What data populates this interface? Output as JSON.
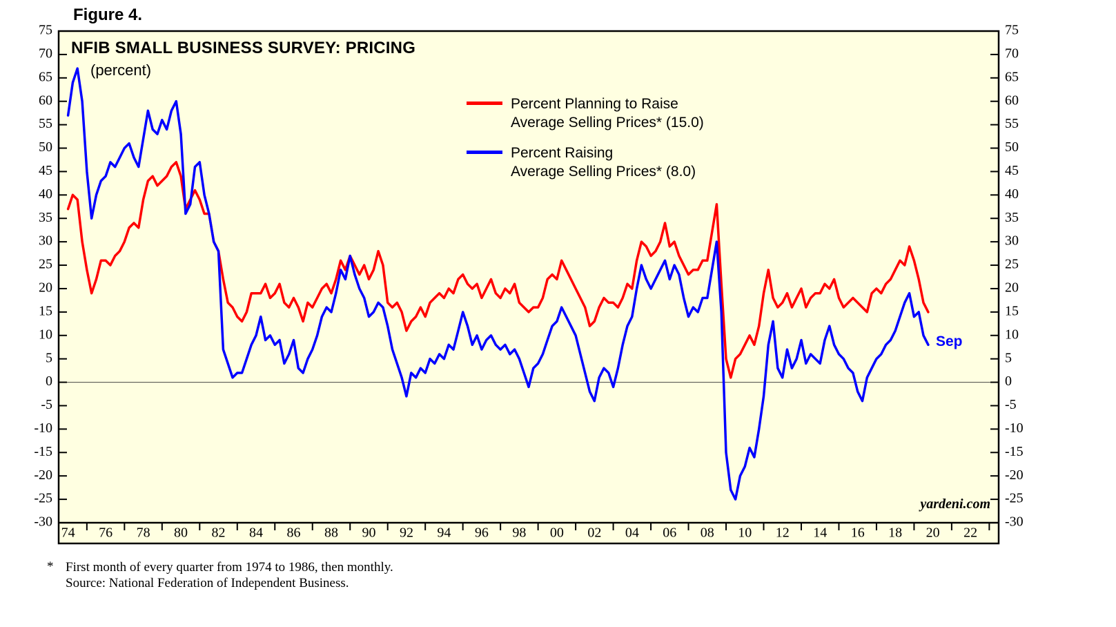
{
  "figure_label": "Figure 4.",
  "footnote": {
    "marker": "*",
    "line1": "First month of every quarter from 1974 to 1986, then monthly.",
    "line2": "Source: National Federation of Independent Business."
  },
  "chart_data": {
    "type": "line",
    "title": "NFIB SMALL BUSINESS SURVEY: PRICING",
    "subtitle": "(percent)",
    "watermark": "yardeni.com",
    "colors": {
      "background": "#ffffe1",
      "axis": "#000000",
      "zero_line": "#444444"
    },
    "x_domain": [
      1973.5,
      2023.5
    ],
    "y_domain": [
      -30,
      75
    ],
    "y_ticks": [
      75,
      70,
      65,
      60,
      55,
      50,
      45,
      40,
      35,
      30,
      25,
      20,
      15,
      10,
      5,
      0,
      -5,
      -10,
      -15,
      -20,
      -25,
      -30
    ],
    "x_tick_years": [
      1974,
      1976,
      1978,
      1980,
      1982,
      1984,
      1986,
      1988,
      1990,
      1992,
      1994,
      1996,
      1998,
      2000,
      2002,
      2004,
      2006,
      2008,
      2010,
      2012,
      2014,
      2016,
      2018,
      2020,
      2022
    ],
    "x_tick_labels": [
      "74",
      "76",
      "78",
      "80",
      "82",
      "84",
      "86",
      "88",
      "90",
      "92",
      "94",
      "96",
      "98",
      "00",
      "02",
      "04",
      "06",
      "08",
      "10",
      "12",
      "14",
      "16",
      "18",
      "20",
      "22"
    ],
    "minor_x_tick_years": [
      1975,
      1977,
      1979,
      1981,
      1983,
      1985,
      1987,
      1989,
      1991,
      1993,
      1995,
      1997,
      1999,
      2001,
      2003,
      2005,
      2007,
      2009,
      2011,
      2013,
      2015,
      2017,
      2019,
      2021,
      2023
    ],
    "zero_line": true,
    "annotations": [
      {
        "text": "Sep",
        "color": "#0000ff",
        "x": 2020.2,
        "y": 8
      }
    ],
    "series": [
      {
        "name": "Percent Planning to Raise Average Selling Prices* (15.0)",
        "legend_lines": [
          "Percent Planning to Raise",
          "Average Selling Prices* (15.0)"
        ],
        "color": "#ff0000",
        "latest_value": 15.0,
        "x_start": 1974.0,
        "x_step": 0.25,
        "values": [
          37,
          40,
          39,
          30,
          24,
          19,
          22,
          26,
          26,
          25,
          27,
          28,
          30,
          33,
          34,
          33,
          39,
          43,
          44,
          42,
          43,
          44,
          46,
          47,
          44,
          37,
          39,
          41,
          39,
          36,
          36,
          30,
          28,
          22,
          17,
          16,
          14,
          13,
          15,
          19,
          19,
          19,
          21,
          18,
          19,
          21,
          17,
          16,
          18,
          16,
          13,
          17,
          16,
          18,
          20,
          21,
          19,
          22,
          26,
          24,
          27,
          25,
          23,
          25,
          22,
          24,
          28,
          25,
          17,
          16,
          17,
          15,
          11,
          13,
          14,
          16,
          14,
          17,
          18,
          19,
          18,
          20,
          19,
          22,
          23,
          21,
          20,
          21,
          18,
          20,
          22,
          19,
          18,
          20,
          19,
          21,
          17,
          16,
          15,
          16,
          16,
          18,
          22,
          23,
          22,
          26,
          24,
          22,
          20,
          18,
          16,
          12,
          13,
          16,
          18,
          17,
          17,
          16,
          18,
          21,
          20,
          26,
          30,
          29,
          27,
          28,
          30,
          34,
          29,
          30,
          27,
          25,
          23,
          24,
          24,
          26,
          26,
          32,
          38,
          21,
          5,
          1,
          5,
          6,
          8,
          10,
          8,
          12,
          19,
          24,
          18,
          16,
          17,
          19,
          16,
          18,
          20,
          16,
          18,
          19,
          19,
          21,
          20,
          22,
          18,
          16,
          17,
          18,
          17,
          16,
          15,
          19,
          20,
          19,
          21,
          22,
          24,
          26,
          25,
          29,
          26,
          22,
          17,
          15
        ]
      },
      {
        "name": "Percent Raising Average Selling Prices* (8.0)",
        "legend_lines": [
          "Percent Raising",
          "Average Selling Prices* (8.0)"
        ],
        "color": "#0000ff",
        "latest_value": 8.0,
        "x_start": 1974.0,
        "x_step": 0.25,
        "values": [
          57,
          64,
          67,
          60,
          45,
          35,
          40,
          43,
          44,
          47,
          46,
          48,
          50,
          51,
          48,
          46,
          52,
          58,
          54,
          53,
          56,
          54,
          58,
          60,
          53,
          36,
          38,
          46,
          47,
          40,
          36,
          30,
          28,
          7,
          4,
          1,
          2,
          2,
          5,
          8,
          10,
          14,
          9,
          10,
          8,
          9,
          4,
          6,
          9,
          3,
          2,
          5,
          7,
          10,
          14,
          16,
          15,
          19,
          24,
          22,
          27,
          23,
          20,
          18,
          14,
          15,
          17,
          16,
          12,
          7,
          4,
          1,
          -3,
          2,
          1,
          3,
          2,
          5,
          4,
          6,
          5,
          8,
          7,
          11,
          15,
          12,
          8,
          10,
          7,
          9,
          10,
          8,
          7,
          8,
          6,
          7,
          5,
          2,
          -1,
          3,
          4,
          6,
          9,
          12,
          13,
          16,
          14,
          12,
          10,
          6,
          2,
          -2,
          -4,
          1,
          3,
          2,
          -1,
          3,
          8,
          12,
          14,
          20,
          25,
          22,
          20,
          22,
          24,
          26,
          22,
          25,
          23,
          18,
          14,
          16,
          15,
          18,
          18,
          24,
          30,
          15,
          -15,
          -23,
          -25,
          -20,
          -18,
          -14,
          -16,
          -10,
          -3,
          8,
          13,
          3,
          1,
          7,
          3,
          5,
          9,
          4,
          6,
          5,
          4,
          9,
          12,
          8,
          6,
          5,
          3,
          2,
          -2,
          -4,
          1,
          3,
          5,
          6,
          8,
          9,
          11,
          14,
          17,
          19,
          14,
          15,
          10,
          8
        ]
      }
    ]
  }
}
